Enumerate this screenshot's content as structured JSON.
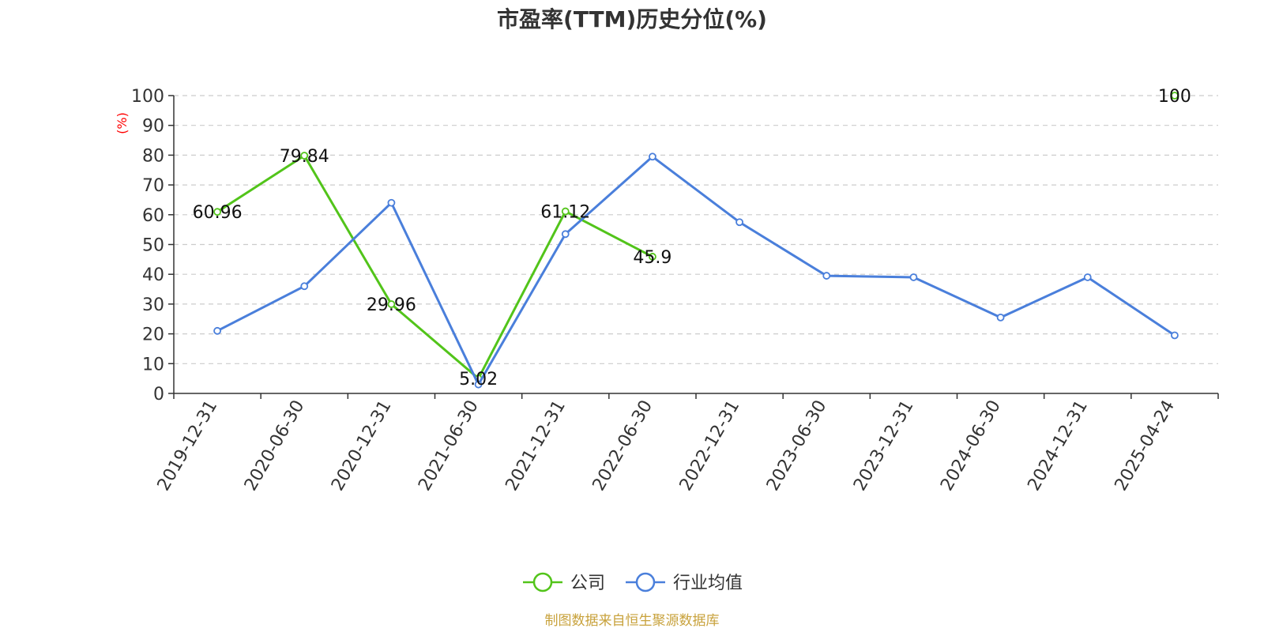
{
  "chart_data": {
    "type": "line",
    "title": "市盈率(TTM)历史分位(%)",
    "ylabel": "(%)",
    "ylim": [
      0,
      100
    ],
    "yticks": [
      0,
      10,
      20,
      30,
      40,
      50,
      60,
      70,
      80,
      90,
      100
    ],
    "grid": true,
    "legend_position": "bottom",
    "categories": [
      "2019-12-31",
      "2020-06-30",
      "2020-12-31",
      "2021-06-30",
      "2021-12-31",
      "2022-06-30",
      "2022-12-31",
      "2023-06-30",
      "2023-12-31",
      "2024-06-30",
      "2024-12-31",
      "2025-04-24"
    ],
    "series": [
      {
        "name": "公司",
        "color": "#52c41a",
        "values": [
          60.96,
          79.84,
          29.96,
          5.02,
          61.12,
          45.9,
          null,
          null,
          null,
          null,
          null,
          100
        ],
        "labels": [
          "60.96",
          "79.84",
          "29.96",
          "5.02",
          "61.12",
          "45.9",
          null,
          null,
          null,
          null,
          null,
          "100"
        ]
      },
      {
        "name": "行业均值",
        "color": "#4a7fdb",
        "values": [
          21,
          36,
          64,
          3,
          53.5,
          79.5,
          57.5,
          39.5,
          39,
          25.5,
          39,
          19.5
        ]
      }
    ],
    "source": "制图数据来自恒生聚源数据库"
  }
}
